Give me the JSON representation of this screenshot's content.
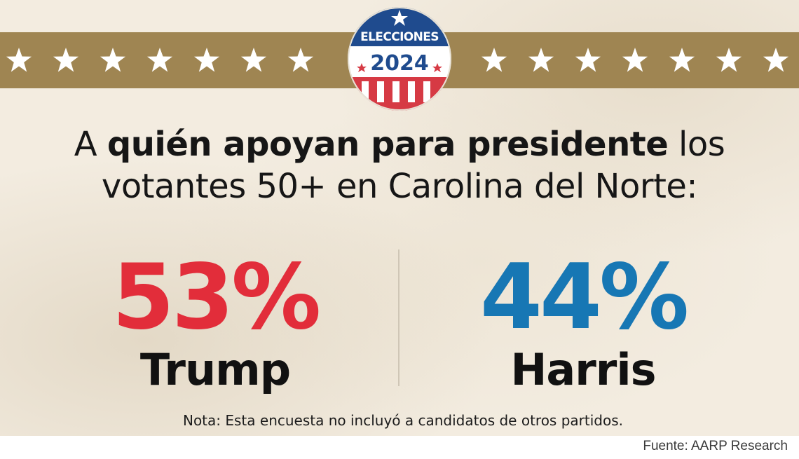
{
  "badge": {
    "line1": "ELECCIONES",
    "year": "2024"
  },
  "headline": {
    "part1": "A ",
    "bold": "quién apoyan para presidente",
    "part2": " los",
    "line2": "votantes 50+ en Carolina del Norte:"
  },
  "chart_data": {
    "type": "bar",
    "categories": [
      "Trump",
      "Harris"
    ],
    "values": [
      53,
      44
    ],
    "value_labels": [
      "53%",
      "44%"
    ],
    "colors": [
      "#e22d3a",
      "#1777b4"
    ]
  },
  "note": "Nota: Esta encuesta no incluyó a candidatos de otros partidos.",
  "source": "Fuente: AARP Research",
  "colors": {
    "band": "#9f8552",
    "background": "#f3ece0",
    "red": "#e22d3a",
    "blue": "#1777b4",
    "badge_navy": "#1f4b8e"
  }
}
